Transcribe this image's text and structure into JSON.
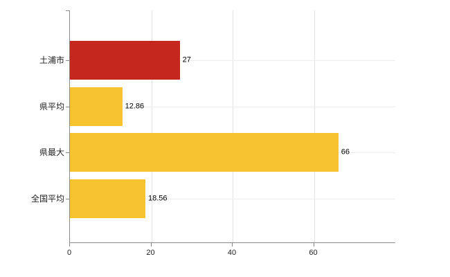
{
  "chart_data": {
    "type": "bar",
    "orientation": "horizontal",
    "title": "",
    "xlabel": "",
    "ylabel": "",
    "categories": [
      "土浦市",
      "県平均",
      "県最大",
      "全国平均"
    ],
    "values": [
      27,
      12.86,
      66,
      18.56
    ],
    "value_labels": [
      "27",
      "12.86",
      "66",
      "18.56"
    ],
    "bar_colors": [
      "#c5261d",
      "#f7c32f",
      "#f7c32f",
      "#f7c32f"
    ],
    "xlim": [
      0,
      80
    ],
    "x_ticks": [
      0,
      20,
      40,
      60
    ],
    "x_tick_labels": [
      "0",
      "20",
      "40",
      "60"
    ],
    "grid": "vertical-lines-at-x-ticks-and-horizontal-lines-at-category-centers",
    "legend": "none",
    "background": "#ffffff",
    "axis_color": "#8a8a8a"
  }
}
